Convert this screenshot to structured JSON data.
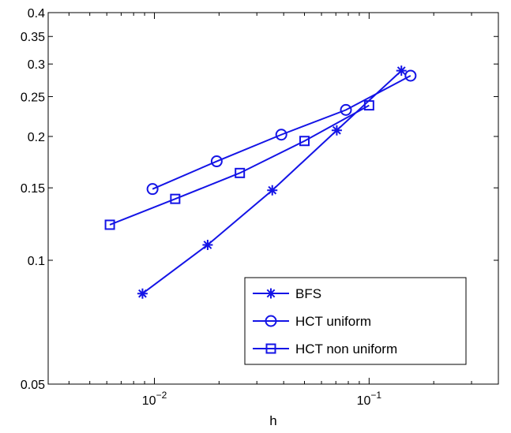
{
  "chart_data": {
    "type": "line",
    "x_scale": "log",
    "y_scale": "log",
    "xlabel": "h",
    "ylabel": "",
    "xlim": [
      0.0032,
      0.4
    ],
    "ylim": [
      0.05,
      0.4
    ],
    "x_ticks": [
      {
        "value": 0.01,
        "base": "10",
        "exp": "−2"
      },
      {
        "value": 0.1,
        "base": "10",
        "exp": "−1"
      }
    ],
    "y_ticks": [
      {
        "value": 0.05,
        "label": "0.05"
      },
      {
        "value": 0.1,
        "label": "0.1"
      },
      {
        "value": 0.15,
        "label": "0.15"
      },
      {
        "value": 0.2,
        "label": "0.2"
      },
      {
        "value": 0.25,
        "label": "0.25"
      },
      {
        "value": 0.3,
        "label": "0.3"
      },
      {
        "value": 0.35,
        "label": "0.35"
      },
      {
        "value": 0.4,
        "label": "0.4"
      }
    ],
    "legend_position": "bottom-right",
    "grid": false,
    "line_color": "#1414e6",
    "series": [
      {
        "name": "BFS",
        "marker": "asterisk",
        "points": [
          {
            "x": 0.0088,
            "y": 0.083
          },
          {
            "x": 0.0177,
            "y": 0.109
          },
          {
            "x": 0.0354,
            "y": 0.148
          },
          {
            "x": 0.0707,
            "y": 0.207
          },
          {
            "x": 0.1414,
            "y": 0.289
          }
        ]
      },
      {
        "name": "HCT uniform",
        "marker": "circle",
        "points": [
          {
            "x": 0.0098,
            "y": 0.149
          },
          {
            "x": 0.0195,
            "y": 0.174
          },
          {
            "x": 0.039,
            "y": 0.202
          },
          {
            "x": 0.078,
            "y": 0.232
          },
          {
            "x": 0.156,
            "y": 0.281
          }
        ]
      },
      {
        "name": "HCT non uniform",
        "marker": "square",
        "points": [
          {
            "x": 0.0062,
            "y": 0.122
          },
          {
            "x": 0.0125,
            "y": 0.141
          },
          {
            "x": 0.025,
            "y": 0.163
          },
          {
            "x": 0.05,
            "y": 0.195
          },
          {
            "x": 0.1,
            "y": 0.238
          }
        ]
      }
    ]
  }
}
